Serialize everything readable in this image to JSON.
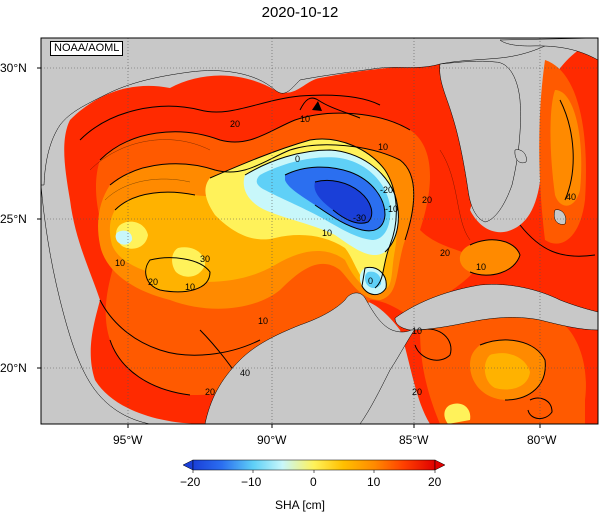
{
  "title": "2020-10-12",
  "source": "NOAA/AOML",
  "axes": {
    "x_ticks": [
      "95°W",
      "90°W",
      "85°W",
      "80°W"
    ],
    "y_ticks": [
      "30°N",
      "25°N",
      "20°N"
    ]
  },
  "colorbar": {
    "label": "SHA [cm]",
    "ticks": [
      "−20",
      "−10",
      "0",
      "10",
      "20"
    ],
    "range": [
      -20,
      20
    ],
    "colors": [
      "#1a3fd8",
      "#2b6ff0",
      "#3aa0f5",
      "#5fd0f7",
      "#a6ecfb",
      "#e6fcf8",
      "#fff25a",
      "#ffd21e",
      "#ffb200",
      "#ff8a00",
      "#ff5a00",
      "#ff2a00",
      "#e80000"
    ]
  },
  "contour_labels": [
    "20",
    "10",
    "0",
    "-30",
    "-10",
    "-20",
    "10",
    "20",
    "10",
    "10",
    "20",
    "30",
    "40",
    "10",
    "20",
    "10",
    "20",
    "10",
    "0",
    "40",
    "20",
    "10"
  ],
  "land_color": "#c8c8c8"
}
